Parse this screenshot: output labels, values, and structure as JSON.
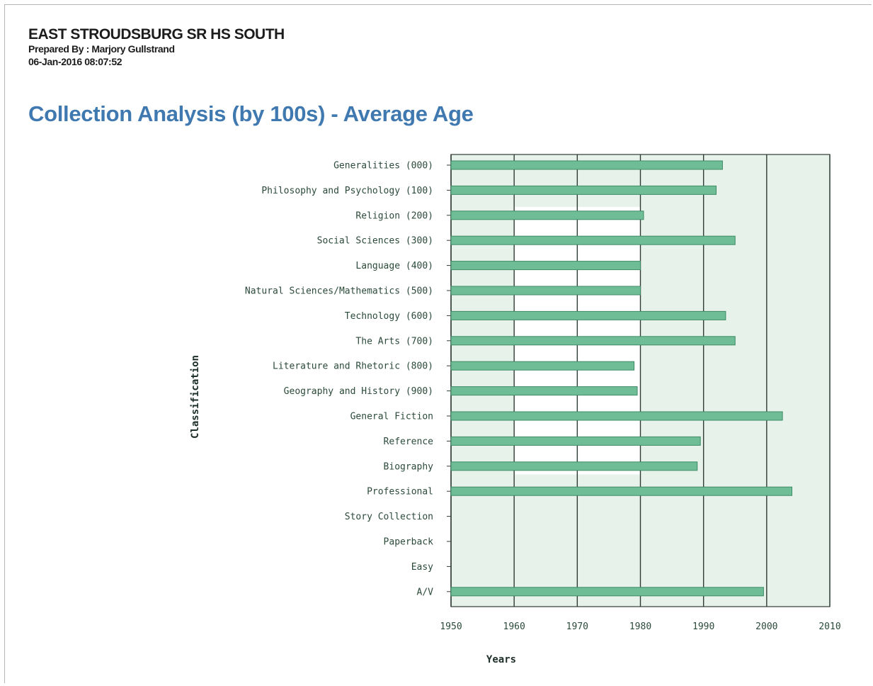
{
  "header": {
    "school": "EAST STROUDSBURG SR HS SOUTH",
    "prepared_by": "Prepared By : Marjory Gullstrand",
    "timestamp": "06-Jan-2016 08:07:52"
  },
  "colors": {
    "bar": "#6fbd96",
    "bar_edge": "#3f8c66",
    "plot_bg": "#e6f2ea",
    "band_white": "#ffffff",
    "grid": "#2f3b35",
    "title": "#3f79b0"
  },
  "chart_data": {
    "type": "bar",
    "orientation": "horizontal",
    "title": "Collection Analysis (by 100s) - Average Age",
    "xlabel": "Years",
    "ylabel": "Classification",
    "xlim": [
      1950,
      2010
    ],
    "xticks": [
      "1950",
      "1960",
      "1970",
      "1980",
      "1990",
      "2000",
      "2010"
    ],
    "grid": true,
    "legend": "none",
    "categories": [
      "Generalities (000)",
      "Philosophy and Psychology (100)",
      "Religion (200)",
      "Social Sciences (300)",
      "Language (400)",
      "Natural Sciences/Mathematics (500)",
      "Technology (600)",
      "The Arts (700)",
      "Literature and Rhetoric (800)",
      "Geography and History (900)",
      "General Fiction",
      "Reference",
      "Biography",
      "Professional",
      "Story Collection",
      "Paperback",
      "Easy",
      "A/V"
    ],
    "values": [
      1993,
      1992,
      1980.5,
      1995,
      1980,
      1980,
      1993.5,
      1995,
      1979,
      1979.5,
      2002.5,
      1989.5,
      1989,
      2004,
      null,
      null,
      null,
      1999.5
    ]
  }
}
